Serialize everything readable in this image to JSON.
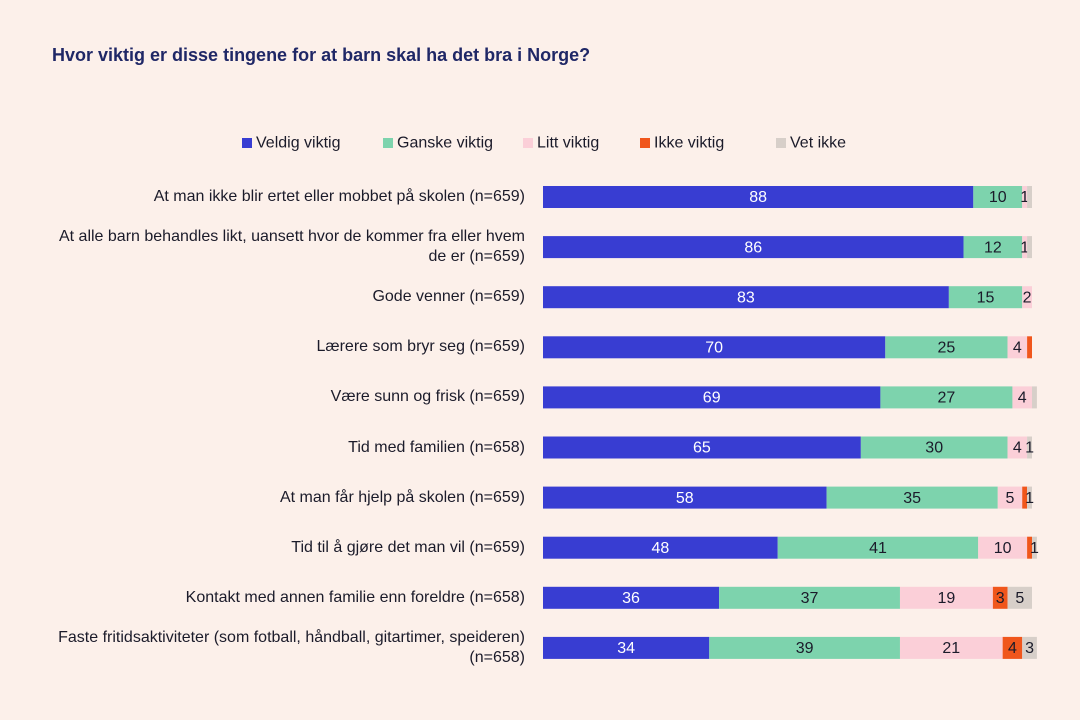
{
  "chart_data": {
    "type": "stacked-bar-horizontal",
    "title": "Hvor viktig er disse tingene for at barn skal ha det bra i Norge?",
    "categories": [
      "At man ikke blir ertet eller mobbet på skolen (n=659)",
      "At alle barn behandles likt, uansett hvor de kommer fra eller hvem de er (n=659)",
      "Gode venner (n=659)",
      "Lærere som bryr seg (n=659)",
      "Være sunn og frisk (n=659)",
      "Tid med familien (n=658)",
      "At man får hjelp på skolen (n=659)",
      "Tid til å gjøre det man vil (n=659)",
      "Kontakt med annen familie enn foreldre (n=658)",
      "Faste fritidsaktiviteter (som fotball, håndball, gitartimer, speideren) (n=658)"
    ],
    "xlim": [
      0,
      100
    ],
    "series": [
      {
        "name": "Veldig viktig",
        "color": "#383dd2",
        "values": [
          88,
          86,
          83,
          70,
          69,
          65,
          58,
          48,
          36,
          34
        ],
        "value_labels": [
          "88",
          "86",
          "83",
          "70",
          "69",
          "65",
          "58",
          "48",
          "36",
          "34"
        ]
      },
      {
        "name": "Ganske viktig",
        "color": "#7dd3ad",
        "values": [
          10,
          12,
          15,
          25,
          27,
          30,
          35,
          41,
          37,
          39
        ],
        "value_labels": [
          "10",
          "12",
          "15",
          "25",
          "27",
          "30",
          "35",
          "41",
          "37",
          "39"
        ]
      },
      {
        "name": "Litt viktig",
        "color": "#fbcfd8",
        "values": [
          1,
          1,
          2,
          4,
          4,
          4,
          5,
          10,
          19,
          21
        ],
        "value_labels": [
          "1",
          "1",
          "2",
          "4",
          "4",
          "4",
          "5",
          "10",
          "19",
          "21"
        ]
      },
      {
        "name": "Ikke viktig",
        "color": "#f0561c",
        "values": [
          0,
          0,
          0,
          1,
          0,
          0,
          1,
          1,
          3,
          4
        ],
        "value_labels": [
          null,
          null,
          null,
          null,
          null,
          null,
          null,
          null,
          "3",
          "4"
        ]
      },
      {
        "name": "Vet ikke",
        "color": "#d7cfc9",
        "values": [
          1,
          1,
          0,
          0,
          1,
          1,
          1,
          1,
          5,
          3
        ],
        "value_labels": [
          null,
          null,
          null,
          null,
          null,
          "1",
          "1",
          "1",
          "5",
          "3"
        ]
      }
    ]
  }
}
